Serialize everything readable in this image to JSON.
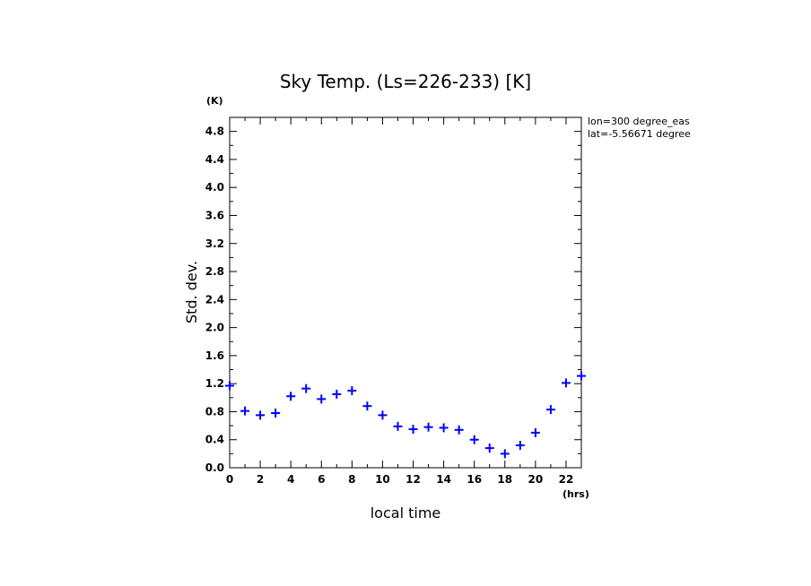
{
  "chart_data": {
    "type": "scatter",
    "title": "Sky Temp. (Ls=226-233) [K]",
    "xlabel": "local time",
    "ylabel": "Std. dev.",
    "x_unit": "(hrs)",
    "y_unit": "(K)",
    "annotations": [
      "lon=300 degree_eas",
      "lat=-5.56671 degree"
    ],
    "xlim": [
      0,
      23
    ],
    "ylim": [
      0,
      5.0
    ],
    "x_ticks": [
      0,
      2,
      4,
      6,
      8,
      10,
      12,
      14,
      16,
      18,
      20,
      22
    ],
    "y_ticks": [
      0.0,
      0.4,
      0.8,
      1.2,
      1.6,
      2.0,
      2.4,
      2.8,
      3.2,
      3.6,
      4.0,
      4.4,
      4.8
    ],
    "x_tick_labels": [
      "0",
      "2",
      "4",
      "6",
      "8",
      "10",
      "12",
      "14",
      "16",
      "18",
      "20",
      "22"
    ],
    "y_tick_labels": [
      "0.0",
      "0.4",
      "0.8",
      "1.2",
      "1.6",
      "2.0",
      "2.4",
      "2.8",
      "3.2",
      "3.6",
      "4.0",
      "4.4",
      "4.8"
    ],
    "grid": false,
    "marker": "+",
    "marker_color": "#0000ff",
    "series": [
      {
        "x": [
          0,
          1,
          2,
          3,
          4,
          5,
          6,
          7,
          8,
          9,
          10,
          11,
          12,
          13,
          14,
          15,
          16,
          17,
          18,
          19,
          20,
          21,
          22,
          23
        ],
        "values": [
          1.17,
          0.81,
          0.75,
          0.78,
          1.02,
          1.13,
          0.98,
          1.05,
          1.1,
          0.88,
          0.75,
          0.59,
          0.55,
          0.58,
          0.57,
          0.54,
          0.4,
          0.28,
          0.2,
          0.32,
          0.5,
          0.83,
          1.21,
          1.31
        ]
      }
    ]
  }
}
